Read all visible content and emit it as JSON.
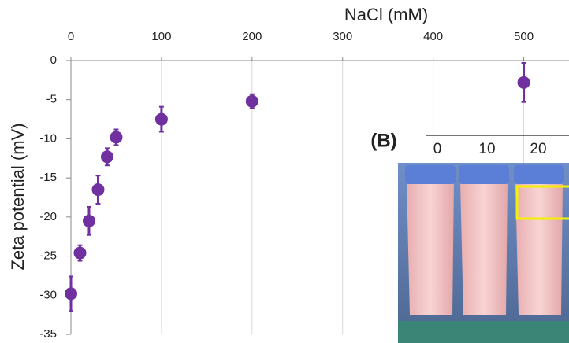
{
  "chart_data": {
    "type": "scatter",
    "title": "NaCl (mM)",
    "y_label": "Zeta potential (mV)",
    "x": [
      0,
      10,
      20,
      30,
      40,
      50,
      100,
      200,
      500
    ],
    "values": [
      -29.8,
      -24.6,
      -20.5,
      -16.5,
      -12.3,
      -9.8,
      -7.5,
      -5.2,
      -2.8
    ],
    "errors": [
      2.2,
      1.0,
      1.8,
      1.8,
      1.1,
      1.0,
      1.6,
      0.9,
      2.5
    ],
    "color": "#7030a0",
    "xlim": [
      0,
      550
    ],
    "xticks": [
      0,
      100,
      200,
      300,
      400,
      500
    ],
    "ylim": [
      -35,
      0
    ],
    "yticks": [
      0,
      -5,
      -10,
      -15,
      -20,
      -25,
      -30,
      -35
    ],
    "grid": true
  },
  "inset": {
    "label": "(B)",
    "tube_labels": [
      "0",
      "10",
      "20"
    ]
  }
}
